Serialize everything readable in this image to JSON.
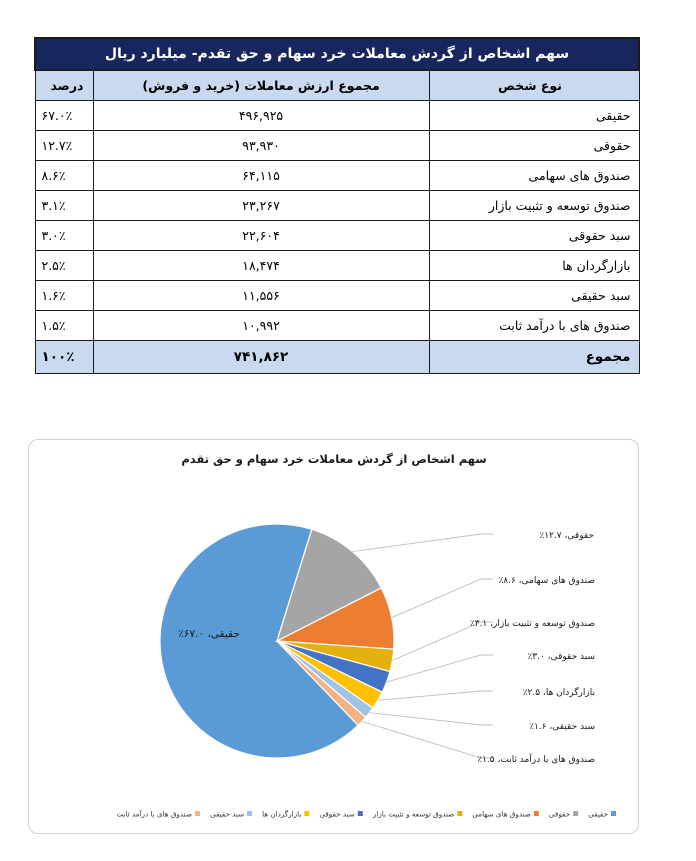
{
  "table": {
    "title": "سهم اشخاص از گردش معاملات خرد سهام و حق تقدم- میلیارد ریال",
    "headers": {
      "type": "نوع شخص",
      "value": "مجموع ارزش معاملات (خرید و فروش)",
      "percent": "درصد"
    },
    "rows": [
      {
        "type": "حقیقی",
        "value": "۴۹۶,۹۲۵",
        "percent": "۶۷.۰٪"
      },
      {
        "type": "حقوقی",
        "value": "۹۳,۹۳۰",
        "percent": "۱۲.۷٪"
      },
      {
        "type": "صندوق های سهامی",
        "value": "۶۴,۱۱۵",
        "percent": "۸.۶٪"
      },
      {
        "type": "صندوق توسعه و تثبیت بازار",
        "value": "۲۳,۲۶۷",
        "percent": "۳.۱٪"
      },
      {
        "type": "سبد حقوقی",
        "value": "۲۲,۶۰۴",
        "percent": "۳.۰٪"
      },
      {
        "type": "بازارگردان ها",
        "value": "۱۸,۴۷۴",
        "percent": "۲.۵٪"
      },
      {
        "type": "سبد حقیقی",
        "value": "۱۱,۵۵۶",
        "percent": "۱.۶٪"
      },
      {
        "type": "صندوق های با درآمد ثابت",
        "value": "۱۰,۹۹۲",
        "percent": "۱.۵٪"
      }
    ],
    "total": {
      "type": "مجموع",
      "value": "۷۴۱,۸۶۲",
      "percent": "۱۰۰٪"
    }
  },
  "chart_data": {
    "type": "pie",
    "title": "سهم اشخاص از گردش معاملات خرد سهام و حق تقدم",
    "legend_position": "bottom",
    "slices": [
      {
        "name": "حقیقی",
        "value": 67.0,
        "label": "حقیقی، ۶۷.۰٪",
        "color": "#5b9bd5"
      },
      {
        "name": "حقوقی",
        "value": 12.7,
        "label": "حقوقی، ۱۲.۷٪",
        "color": "#a5a5a5"
      },
      {
        "name": "صندوق های سهامی",
        "value": 8.6,
        "label": "صندوق های سهامی، ۸.۶٪",
        "color": "#ed7d31"
      },
      {
        "name": "صندوق توسعه و تثبیت بازار",
        "value": 3.1,
        "label": "صندوق توسعه و تثبیت بازار، ۳.۱٪",
        "color": "#e3b00d"
      },
      {
        "name": "سبد حقوقی",
        "value": 3.0,
        "label": "سبد حقوقی، ۳.۰٪",
        "color": "#4472c4"
      },
      {
        "name": "بازارگردان ها",
        "value": 2.5,
        "label": "بازارگردان ها، ۲.۵٪",
        "color": "#ffc000"
      },
      {
        "name": "سبد حقیقی",
        "value": 1.6,
        "label": "سبد حقیقی، ۱.۶٪",
        "color": "#9dc3e6"
      },
      {
        "name": "صندوق های با درآمد ثابت",
        "value": 1.5,
        "label": "صندوق های با درآمد ثابت، ۱.۵٪",
        "color": "#f4b183"
      }
    ]
  }
}
